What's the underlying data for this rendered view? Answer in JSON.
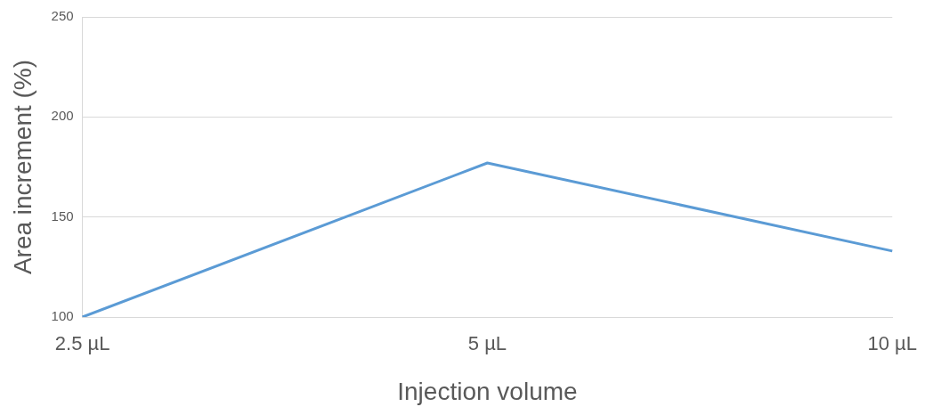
{
  "chart_data": {
    "type": "line",
    "xlabel": "Injection volume",
    "ylabel": "Area increment (%)",
    "categories": [
      "2.5 µL",
      "5 µL",
      "10 µL"
    ],
    "series": [
      {
        "color": "#5b9bd5",
        "values": [
          100,
          177,
          133
        ]
      }
    ],
    "ylim": [
      100,
      250
    ],
    "yticks": [
      100,
      150,
      200,
      250
    ],
    "grid": "y",
    "legend": false,
    "marker": "none",
    "line_style": "solid"
  }
}
